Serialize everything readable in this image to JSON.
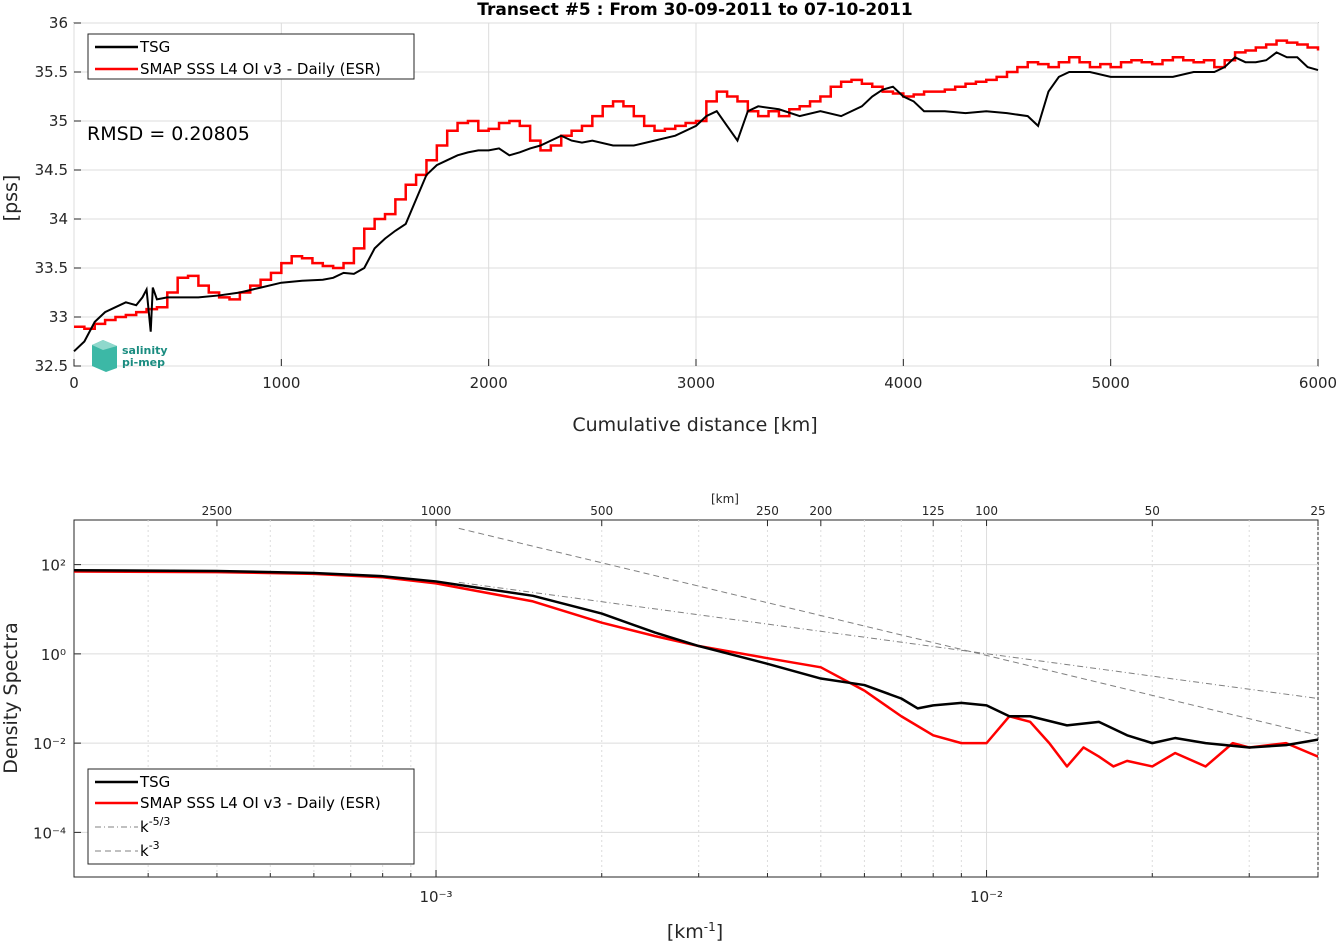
{
  "chart_data": [
    {
      "type": "line",
      "title": "Transect #5 : From 30-09-2011 to 07-10-2011",
      "xlabel": "Cumulative distance [km]",
      "ylabel": "[pss]",
      "xlim": [
        0,
        6000
      ],
      "ylim": [
        32.5,
        36
      ],
      "xticks": [
        0,
        1000,
        2000,
        3000,
        4000,
        5000,
        6000
      ],
      "yticks": [
        32.5,
        33,
        33.5,
        34,
        34.5,
        35,
        35.5,
        36
      ],
      "ytick_labels": [
        "32.5",
        "33",
        "33.5",
        "34",
        "34.5",
        "35",
        "35.5",
        "36"
      ],
      "grid": true,
      "legend_position": "top-left",
      "annotation": "RMSD = 0.20805",
      "logo": "salinity pi-mep",
      "series": [
        {
          "name": "TSG",
          "color": "#000000",
          "x": [
            0,
            50,
            100,
            150,
            200,
            250,
            300,
            330,
            350,
            370,
            380,
            400,
            450,
            500,
            600,
            700,
            800,
            900,
            1000,
            1100,
            1200,
            1250,
            1300,
            1350,
            1400,
            1450,
            1500,
            1550,
            1600,
            1650,
            1700,
            1750,
            1800,
            1850,
            1900,
            1950,
            2000,
            2050,
            2100,
            2150,
            2200,
            2250,
            2300,
            2350,
            2400,
            2450,
            2500,
            2600,
            2700,
            2800,
            2900,
            3000,
            3050,
            3100,
            3150,
            3200,
            3250,
            3300,
            3400,
            3500,
            3600,
            3700,
            3800,
            3850,
            3900,
            3950,
            4000,
            4050,
            4100,
            4150,
            4200,
            4300,
            4400,
            4500,
            4600,
            4650,
            4700,
            4750,
            4800,
            4900,
            5000,
            5100,
            5200,
            5300,
            5400,
            5500,
            5550,
            5600,
            5650,
            5700,
            5750,
            5800,
            5850,
            5900,
            5950,
            6000
          ],
          "y": [
            32.65,
            32.75,
            32.95,
            33.05,
            33.1,
            33.15,
            33.12,
            33.2,
            33.28,
            32.85,
            33.3,
            33.18,
            33.2,
            33.2,
            33.2,
            33.22,
            33.25,
            33.3,
            33.35,
            33.37,
            33.38,
            33.4,
            33.45,
            33.44,
            33.5,
            33.7,
            33.8,
            33.88,
            33.95,
            34.2,
            34.45,
            34.55,
            34.6,
            34.65,
            34.68,
            34.7,
            34.7,
            34.72,
            34.65,
            34.68,
            34.72,
            34.75,
            34.8,
            34.85,
            34.8,
            34.78,
            34.8,
            34.75,
            34.75,
            34.8,
            34.85,
            34.95,
            35.05,
            35.1,
            34.95,
            34.8,
            35.1,
            35.15,
            35.12,
            35.05,
            35.1,
            35.05,
            35.15,
            35.25,
            35.32,
            35.35,
            35.25,
            35.2,
            35.1,
            35.1,
            35.1,
            35.08,
            35.1,
            35.08,
            35.05,
            34.95,
            35.3,
            35.45,
            35.5,
            35.5,
            35.45,
            35.45,
            35.45,
            35.45,
            35.5,
            35.5,
            35.55,
            35.65,
            35.6,
            35.6,
            35.62,
            35.7,
            35.65,
            35.65,
            35.55,
            35.52
          ]
        },
        {
          "name": "SMAP SSS L4 OI v3 - Daily (ESR)",
          "color": "#ff0000",
          "x": [
            0,
            50,
            100,
            150,
            200,
            250,
            300,
            350,
            400,
            450,
            500,
            550,
            600,
            650,
            700,
            750,
            800,
            850,
            900,
            950,
            1000,
            1050,
            1100,
            1150,
            1200,
            1250,
            1300,
            1350,
            1400,
            1450,
            1500,
            1550,
            1600,
            1650,
            1700,
            1750,
            1800,
            1850,
            1900,
            1950,
            2000,
            2050,
            2100,
            2150,
            2200,
            2250,
            2300,
            2350,
            2400,
            2450,
            2500,
            2550,
            2600,
            2650,
            2700,
            2750,
            2800,
            2850,
            2900,
            2950,
            3000,
            3050,
            3100,
            3150,
            3200,
            3250,
            3300,
            3350,
            3400,
            3450,
            3500,
            3550,
            3600,
            3650,
            3700,
            3750,
            3800,
            3850,
            3900,
            3950,
            4000,
            4050,
            4100,
            4150,
            4200,
            4250,
            4300,
            4350,
            4400,
            4450,
            4500,
            4550,
            4600,
            4650,
            4700,
            4750,
            4800,
            4850,
            4900,
            4950,
            5000,
            5050,
            5100,
            5150,
            5200,
            5250,
            5300,
            5350,
            5400,
            5450,
            5500,
            5550,
            5600,
            5650,
            5700,
            5750,
            5800,
            5850,
            5900,
            5950,
            6000
          ],
          "y": [
            32.9,
            32.88,
            32.93,
            32.97,
            33.0,
            33.02,
            33.05,
            33.08,
            33.1,
            33.25,
            33.4,
            33.42,
            33.32,
            33.25,
            33.2,
            33.18,
            33.25,
            33.32,
            33.38,
            33.45,
            33.55,
            33.62,
            33.6,
            33.55,
            33.52,
            33.5,
            33.55,
            33.7,
            33.9,
            34.0,
            34.05,
            34.2,
            34.35,
            34.45,
            34.6,
            34.75,
            34.9,
            34.98,
            35.0,
            34.9,
            34.92,
            34.98,
            35.0,
            34.95,
            34.8,
            34.7,
            34.75,
            34.85,
            34.9,
            34.95,
            35.05,
            35.15,
            35.2,
            35.15,
            35.05,
            34.95,
            34.9,
            34.92,
            34.95,
            34.98,
            35.0,
            35.2,
            35.3,
            35.25,
            35.2,
            35.1,
            35.05,
            35.1,
            35.05,
            35.12,
            35.15,
            35.2,
            35.25,
            35.35,
            35.4,
            35.42,
            35.38,
            35.35,
            35.3,
            35.28,
            35.25,
            35.27,
            35.3,
            35.3,
            35.32,
            35.35,
            35.38,
            35.4,
            35.42,
            35.45,
            35.5,
            35.55,
            35.6,
            35.58,
            35.55,
            35.6,
            35.65,
            35.6,
            35.55,
            35.58,
            35.55,
            35.6,
            35.62,
            35.6,
            35.58,
            35.62,
            35.65,
            35.62,
            35.6,
            35.62,
            35.55,
            35.62,
            35.7,
            35.72,
            35.75,
            35.78,
            35.82,
            35.8,
            35.78,
            35.75,
            35.72
          ]
        }
      ]
    },
    {
      "type": "line",
      "title": "",
      "xlabel": "[km⁻¹]",
      "ylabel": "Density Spectra",
      "xscale": "log",
      "yscale": "log",
      "xlim": [
        0.00022,
        0.04
      ],
      "ylim": [
        1e-05,
        1000
      ],
      "xticks": [
        0.001,
        0.01
      ],
      "xtick_labels": [
        "10⁻³",
        "10⁻²"
      ],
      "yticks": [
        0.0001,
        0.01,
        1,
        100
      ],
      "ytick_labels": [
        "10⁻⁴",
        "10⁻²",
        "10⁰",
        "10²"
      ],
      "top_axis_label": "[km]",
      "top_axis_ticks": [
        2500,
        1000,
        500,
        250,
        200,
        125,
        100,
        50,
        25
      ],
      "top_axis_tick_labels": [
        "2500",
        "1000",
        "500",
        "250",
        "200",
        "125",
        "100",
        "50",
        "25"
      ],
      "grid": true,
      "legend_position": "bottom-left",
      "series": [
        {
          "name": "TSG",
          "color": "#000000",
          "x": [
            0.00022,
            0.0004,
            0.0006,
            0.0008,
            0.001,
            0.0012,
            0.0015,
            0.002,
            0.0025,
            0.003,
            0.004,
            0.005,
            0.006,
            0.007,
            0.0075,
            0.008,
            0.009,
            0.01,
            0.011,
            0.012,
            0.014,
            0.016,
            0.018,
            0.02,
            0.022,
            0.025,
            0.03,
            0.035,
            0.04
          ],
          "y": [
            75,
            72,
            65,
            55,
            42,
            30,
            20,
            8,
            3,
            1.5,
            0.6,
            0.28,
            0.2,
            0.1,
            0.06,
            0.07,
            0.08,
            0.07,
            0.04,
            0.04,
            0.025,
            0.03,
            0.015,
            0.01,
            0.013,
            0.01,
            0.008,
            0.009,
            0.012
          ]
        },
        {
          "name": "SMAP SSS L4 OI v3 - Daily (ESR)",
          "color": "#ff0000",
          "x": [
            0.00022,
            0.0004,
            0.0006,
            0.0008,
            0.001,
            0.0012,
            0.0015,
            0.002,
            0.0025,
            0.003,
            0.004,
            0.005,
            0.006,
            0.007,
            0.008,
            0.009,
            0.01,
            0.011,
            0.012,
            0.013,
            0.014,
            0.015,
            0.016,
            0.017,
            0.018,
            0.02,
            0.022,
            0.025,
            0.028,
            0.03,
            0.035,
            0.04
          ],
          "y": [
            70,
            68,
            62,
            52,
            38,
            25,
            15,
            5,
            2.5,
            1.5,
            0.8,
            0.5,
            0.15,
            0.04,
            0.015,
            0.01,
            0.01,
            0.04,
            0.03,
            0.01,
            0.003,
            0.008,
            0.005,
            0.003,
            0.004,
            0.003,
            0.006,
            0.003,
            0.01,
            0.008,
            0.01,
            0.005
          ]
        },
        {
          "name": "k⁻⁵ᐟ³",
          "color": "#808080",
          "x": [
            0.0011,
            0.04
          ],
          "y": [
            40,
            0.1
          ]
        },
        {
          "name": "k⁻³",
          "color": "#808080",
          "x": [
            0.0011,
            0.04
          ],
          "y": [
            650,
            0.015
          ]
        }
      ],
      "legend_entries": [
        "TSG",
        "SMAP SSS L4 OI v3 - Daily (ESR)",
        "k",
        "k"
      ],
      "legend_superscripts": [
        "",
        "",
        "-5/3",
        "-3"
      ]
    }
  ]
}
